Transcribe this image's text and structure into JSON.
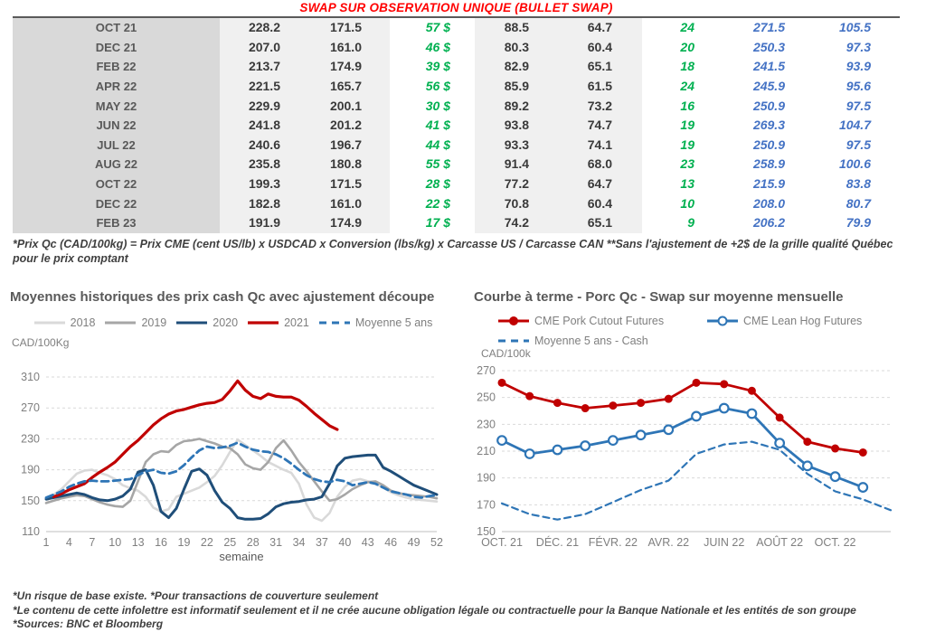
{
  "header": {
    "title": "SWAP SUR OBSERVATION UNIQUE (BULLET SWAP)"
  },
  "table": {
    "rows": [
      [
        "OCT 21",
        "228.2",
        "171.5",
        "57 $",
        "88.5",
        "64.7",
        "24",
        "271.5",
        "105.5"
      ],
      [
        "DEC 21",
        "207.0",
        "161.0",
        "46 $",
        "80.3",
        "60.4",
        "20",
        "250.3",
        "97.3"
      ],
      [
        "FEB 22",
        "213.7",
        "174.9",
        "39 $",
        "82.9",
        "65.1",
        "18",
        "241.5",
        "93.9"
      ],
      [
        "APR 22",
        "221.5",
        "165.7",
        "56 $",
        "85.9",
        "61.5",
        "24",
        "245.9",
        "95.6"
      ],
      [
        "MAY 22",
        "229.9",
        "200.1",
        "30 $",
        "89.2",
        "73.2",
        "16",
        "250.9",
        "97.5"
      ],
      [
        "JUN 22",
        "241.8",
        "201.2",
        "41 $",
        "93.8",
        "74.7",
        "19",
        "269.3",
        "104.7"
      ],
      [
        "JUL 22",
        "240.6",
        "196.7",
        "44 $",
        "93.3",
        "74.1",
        "19",
        "250.9",
        "97.5"
      ],
      [
        "AUG 22",
        "235.8",
        "180.8",
        "55 $",
        "91.4",
        "68.0",
        "23",
        "258.9",
        "100.6"
      ],
      [
        "OCT 22",
        "199.3",
        "171.5",
        "28 $",
        "77.2",
        "64.7",
        "13",
        "215.9",
        "83.8"
      ],
      [
        "DEC 22",
        "182.8",
        "161.0",
        "22 $",
        "70.8",
        "60.4",
        "10",
        "208.0",
        "80.7"
      ],
      [
        "FEB 23",
        "191.9",
        "174.9",
        "17 $",
        "74.2",
        "65.1",
        "9",
        "206.2",
        "79.9"
      ]
    ]
  },
  "table_note": "*Prix Qc (CAD/100kg) = Prix CME (cent US/lb) x USDCAD x Conversion (lbs/kg) x Carcasse US / Carcasse CAN **Sans l'ajustement de +2$ de la grille qualité Québec pour le prix comptant",
  "chart_data": [
    {
      "type": "line",
      "title": "Moyennes historiques des prix cash Qc avec ajustement découpe",
      "ylabel": "CAD/100Kg",
      "xlabel": "semaine",
      "ylim": [
        110,
        310
      ],
      "y_step": 40,
      "x_ticks": [
        1,
        4,
        7,
        10,
        13,
        16,
        19,
        22,
        25,
        28,
        31,
        34,
        37,
        40,
        43,
        46,
        49,
        52
      ],
      "xlim": [
        1,
        52
      ],
      "grid": "dashed-horizontal",
      "legend_position": "top-center",
      "series": [
        {
          "name": "2018",
          "color": "#d9d9d9",
          "width": 2.6,
          "dash": null,
          "marker": null,
          "x_start": 1,
          "values": [
            153,
            158,
            165,
            175,
            185,
            189,
            190,
            186,
            183,
            178,
            170,
            166,
            163,
            155,
            141,
            136,
            139,
            155,
            159,
            163,
            167,
            174,
            182,
            196,
            213,
            229,
            222,
            215,
            208,
            200,
            195,
            190,
            186,
            172,
            145,
            128,
            124,
            134,
            155,
            168,
            176,
            178,
            175,
            172,
            167,
            161,
            157,
            154,
            152,
            151,
            150,
            149
          ]
        },
        {
          "name": "2019",
          "color": "#a6a6a6",
          "width": 2.6,
          "dash": null,
          "marker": null,
          "x_start": 1,
          "values": [
            147,
            150,
            153,
            155,
            157,
            156,
            152,
            148,
            145,
            143,
            142,
            150,
            175,
            200,
            210,
            214,
            213,
            222,
            227,
            228,
            230,
            227,
            224,
            220,
            218,
            210,
            197,
            192,
            190,
            200,
            218,
            228,
            215,
            200,
            188,
            175,
            162,
            150,
            152,
            158,
            165,
            170,
            174,
            175,
            170,
            163,
            160,
            158,
            157,
            156,
            155,
            153
          ]
        },
        {
          "name": "2020",
          "color": "#1f4e79",
          "width": 3,
          "dash": null,
          "marker": null,
          "x_start": 1,
          "values": [
            152,
            154,
            156,
            158,
            160,
            158,
            154,
            151,
            150,
            152,
            156,
            165,
            187,
            190,
            170,
            136,
            128,
            140,
            165,
            188,
            191,
            183,
            163,
            148,
            140,
            128,
            126,
            126,
            127,
            133,
            142,
            146,
            148,
            149,
            151,
            152,
            155,
            172,
            195,
            205,
            207,
            208,
            209,
            209,
            193,
            188,
            182,
            176,
            170,
            166,
            162,
            158
          ]
        },
        {
          "name": "2021",
          "color": "#c00000",
          "width": 3.2,
          "dash": null,
          "marker": null,
          "x_start": 2,
          "values": [
            155,
            159,
            164,
            168,
            172,
            180,
            187,
            193,
            200,
            210,
            220,
            228,
            238,
            248,
            256,
            262,
            266,
            268,
            271,
            274,
            276,
            277,
            281,
            292,
            305,
            293,
            285,
            282,
            288,
            285,
            284,
            284,
            280,
            272,
            263,
            255,
            247,
            242
          ]
        },
        {
          "name": "Moyenne 5 ans",
          "color": "#2e75b6",
          "width": 2.8,
          "dash": "8 5",
          "marker": null,
          "x_start": 1,
          "values": [
            154,
            158,
            162,
            168,
            172,
            175,
            176,
            175,
            175,
            176,
            177,
            178,
            183,
            188,
            190,
            186,
            185,
            188,
            196,
            206,
            215,
            220,
            218,
            219,
            221,
            225,
            220,
            216,
            214,
            213,
            210,
            205,
            198,
            190,
            183,
            178,
            175,
            174,
            177,
            175,
            170,
            172,
            174,
            172,
            167,
            162,
            160,
            158,
            155,
            154,
            156,
            157
          ]
        }
      ]
    },
    {
      "type": "line",
      "title": "Courbe à terme - Porc Qc - Swap sur moyenne mensuelle",
      "ylabel": "CAD/100k",
      "xlabel": "",
      "ylim": [
        150,
        270
      ],
      "y_step": 20,
      "x_tick_labels": [
        {
          "v": 0,
          "label": "OCT. 21"
        },
        {
          "v": 2,
          "label": "DÉC. 21"
        },
        {
          "v": 4,
          "label": "FÉVR. 22"
        },
        {
          "v": 6,
          "label": "AVR. 22"
        },
        {
          "v": 8,
          "label": "JUIN 22"
        },
        {
          "v": 10,
          "label": "AOÛT 22"
        },
        {
          "v": 12,
          "label": "OCT. 22"
        }
      ],
      "xlim": [
        0,
        14
      ],
      "grid": "dashed-horizontal",
      "legend_position": "top-left-two-rows",
      "series": [
        {
          "name": "CME Pork Cutout Futures",
          "color": "#c00000",
          "width": 2.8,
          "dash": null,
          "marker": "dot",
          "x_start": 0,
          "values": [
            261,
            251,
            246,
            242,
            244,
            246,
            249,
            261,
            260,
            255,
            235,
            217,
            212,
            209
          ]
        },
        {
          "name": "CME Lean Hog Futures",
          "color": "#2e75b6",
          "width": 2.8,
          "dash": null,
          "marker": "ring",
          "x_start": 0,
          "values": [
            218,
            208,
            211,
            214,
            218,
            222,
            226,
            236,
            242,
            238,
            216,
            199,
            191,
            183
          ]
        },
        {
          "name": "Moyenne 5 ans - Cash",
          "color": "#2e75b6",
          "width": 2.2,
          "dash": "7 5",
          "marker": null,
          "x_start": 0,
          "values": [
            171,
            163,
            159,
            163,
            172,
            181,
            188,
            208,
            215,
            217,
            211,
            193,
            180,
            174,
            166
          ]
        }
      ]
    }
  ],
  "footnotes": [
    "*Un risque de base existe. *Pour transactions de couverture seulement",
    "*Le contenu de cette infolettre est informatif seulement et il ne crée aucune obligation légale ou contractuelle pour la Banque Nationale et les entités de son groupe",
    "*Sources: BNC et Bloomberg"
  ],
  "colors": {
    "title_red": "#ff0000",
    "gain_green": "#00b050",
    "swap_blue": "#4472c4",
    "line_2018": "#d9d9d9",
    "line_2019": "#a6a6a6",
    "line_2020": "#1f4e79",
    "line_2021": "#c00000",
    "line_moyenne": "#2e75b6",
    "month_bg": "#d9d9d9",
    "group_bg": "#f0f0f0"
  }
}
